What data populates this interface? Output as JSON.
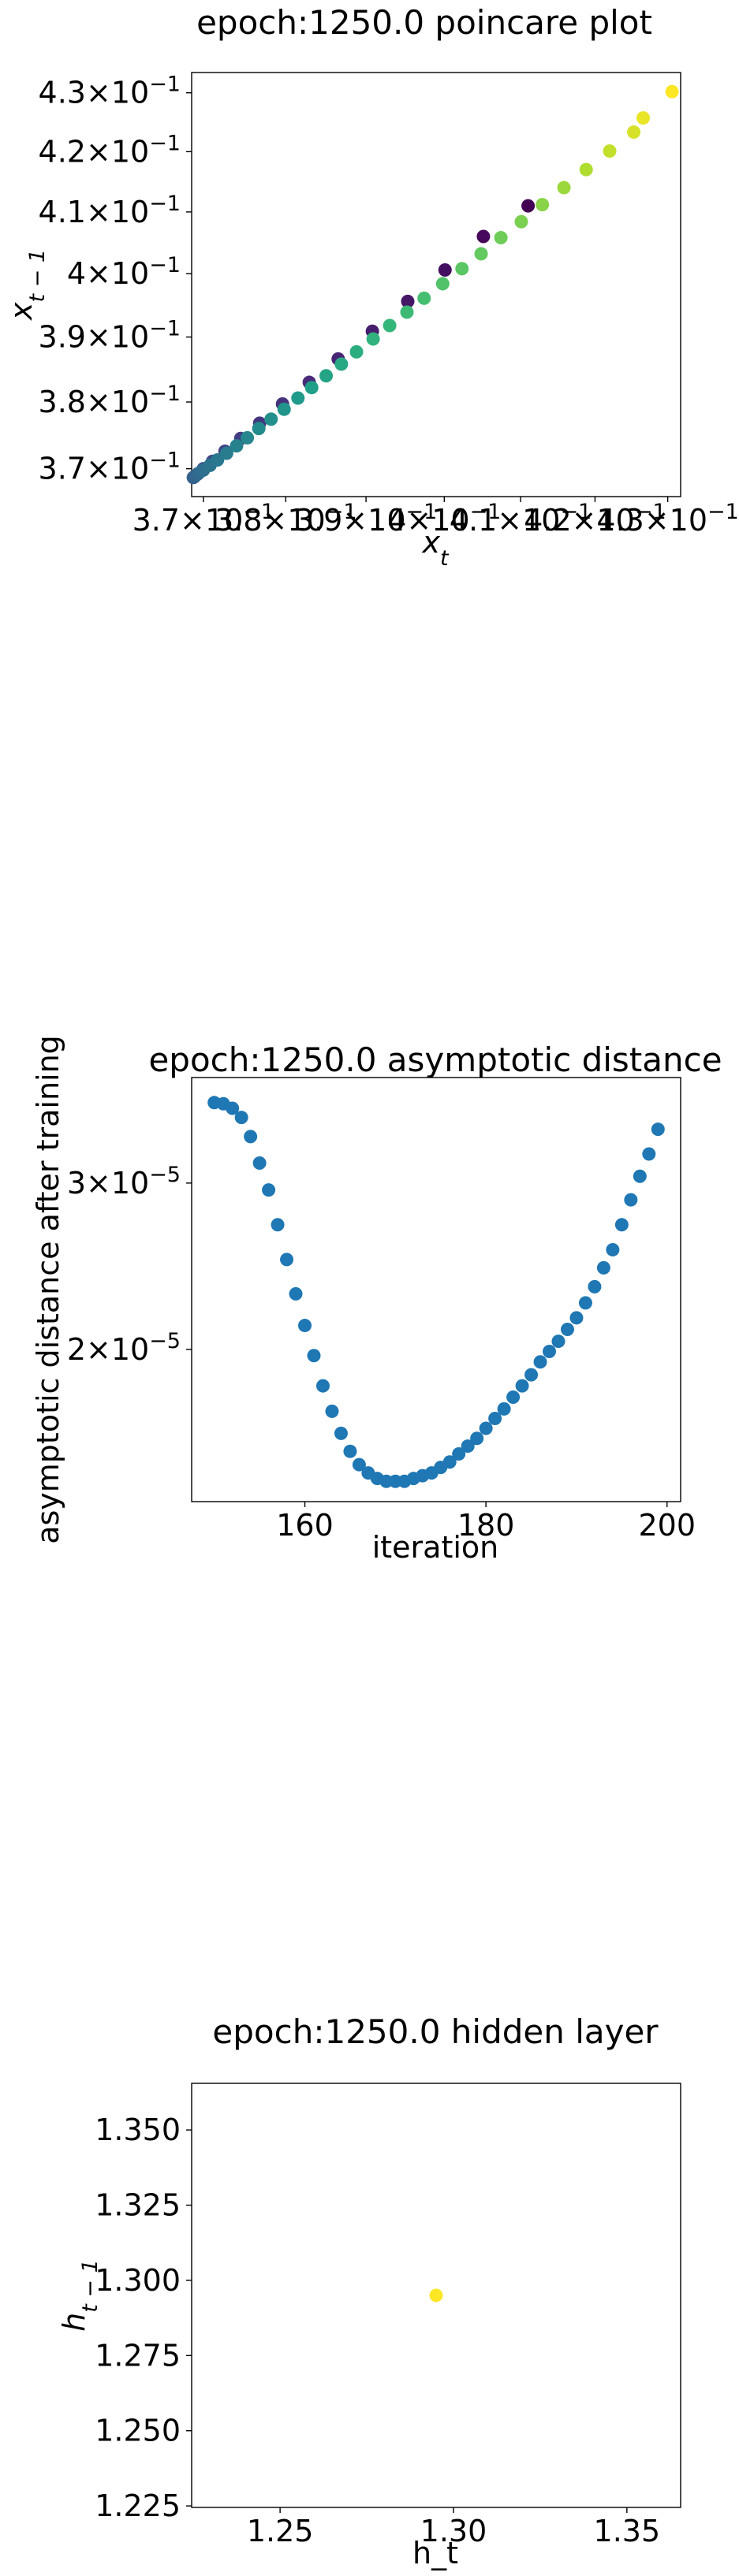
{
  "chart_data": [
    {
      "type": "scatter",
      "title": "epoch:1250.0 poincare plot",
      "xlabel": "x_t",
      "ylabel": "x_{t-1}",
      "scale": "log",
      "xlim": [
        0.3686,
        0.4318
      ],
      "ylim": [
        0.3659,
        0.4335
      ],
      "xticks": [
        {
          "v": 0.37,
          "mant": "3.7",
          "exp": "-1"
        },
        {
          "v": 0.38,
          "mant": "3.8",
          "exp": "-1"
        },
        {
          "v": 0.39,
          "mant": "3.9",
          "exp": "-1"
        },
        {
          "v": 0.4,
          "mant": "4",
          "exp": "-1"
        },
        {
          "v": 0.41,
          "mant": "4.1",
          "exp": "-1"
        },
        {
          "v": 0.42,
          "mant": "4.2",
          "exp": "-1"
        },
        {
          "v": 0.43,
          "mant": "4.3",
          "exp": "-1"
        }
      ],
      "yticks": [
        {
          "v": 0.37,
          "mant": "3.7",
          "exp": "-1"
        },
        {
          "v": 0.38,
          "mant": "3.8",
          "exp": "-1"
        },
        {
          "v": 0.39,
          "mant": "3.9",
          "exp": "-1"
        },
        {
          "v": 0.4,
          "mant": "4",
          "exp": "-1"
        },
        {
          "v": 0.41,
          "mant": "4.1",
          "exp": "-1"
        },
        {
          "v": 0.42,
          "mant": "4.2",
          "exp": "-1"
        },
        {
          "v": 0.43,
          "mant": "4.3",
          "exp": "-1"
        }
      ],
      "colormap": "viridis",
      "points": [
        {
          "x": 0.411,
          "y": 0.411,
          "c": 0.0
        },
        {
          "x": 0.4051,
          "y": 0.406,
          "c": 0.02
        },
        {
          "x": 0.4001,
          "y": 0.4006,
          "c": 0.04
        },
        {
          "x": 0.3953,
          "y": 0.3956,
          "c": 0.06
        },
        {
          "x": 0.3908,
          "y": 0.3909,
          "c": 0.08
        },
        {
          "x": 0.3865,
          "y": 0.3866,
          "c": 0.1
        },
        {
          "x": 0.3829,
          "y": 0.383,
          "c": 0.12
        },
        {
          "x": 0.3796,
          "y": 0.3797,
          "c": 0.14
        },
        {
          "x": 0.3768,
          "y": 0.3768,
          "c": 0.16
        },
        {
          "x": 0.3745,
          "y": 0.3745,
          "c": 0.18
        },
        {
          "x": 0.3726,
          "y": 0.3726,
          "c": 0.2
        },
        {
          "x": 0.3711,
          "y": 0.3711,
          "c": 0.22
        },
        {
          "x": 0.37,
          "y": 0.37,
          "c": 0.24
        },
        {
          "x": 0.3693,
          "y": 0.3692,
          "c": 0.26
        },
        {
          "x": 0.3689,
          "y": 0.3688,
          "c": 0.28
        },
        {
          "x": 0.3688,
          "y": 0.3687,
          "c": 0.3
        },
        {
          "x": 0.369,
          "y": 0.3689,
          "c": 0.32
        },
        {
          "x": 0.3694,
          "y": 0.3693,
          "c": 0.34
        },
        {
          "x": 0.37,
          "y": 0.3698,
          "c": 0.36
        },
        {
          "x": 0.3708,
          "y": 0.3705,
          "c": 0.38
        },
        {
          "x": 0.3717,
          "y": 0.3713,
          "c": 0.4
        },
        {
          "x": 0.3728,
          "y": 0.3723,
          "c": 0.42
        },
        {
          "x": 0.374,
          "y": 0.3734,
          "c": 0.44
        },
        {
          "x": 0.3753,
          "y": 0.3746,
          "c": 0.46
        },
        {
          "x": 0.3767,
          "y": 0.376,
          "c": 0.48
        },
        {
          "x": 0.3782,
          "y": 0.3774,
          "c": 0.5
        },
        {
          "x": 0.3798,
          "y": 0.3789,
          "c": 0.52
        },
        {
          "x": 0.3815,
          "y": 0.3806,
          "c": 0.54
        },
        {
          "x": 0.3832,
          "y": 0.3822,
          "c": 0.56
        },
        {
          "x": 0.385,
          "y": 0.384,
          "c": 0.58
        },
        {
          "x": 0.3869,
          "y": 0.3858,
          "c": 0.6
        },
        {
          "x": 0.3888,
          "y": 0.3877,
          "c": 0.62
        },
        {
          "x": 0.3909,
          "y": 0.3897,
          "c": 0.64
        },
        {
          "x": 0.393,
          "y": 0.3918,
          "c": 0.66
        },
        {
          "x": 0.3952,
          "y": 0.3939,
          "c": 0.68
        },
        {
          "x": 0.3974,
          "y": 0.3961,
          "c": 0.7
        },
        {
          "x": 0.3998,
          "y": 0.3984,
          "c": 0.72
        },
        {
          "x": 0.4023,
          "y": 0.4008,
          "c": 0.74
        },
        {
          "x": 0.4048,
          "y": 0.4032,
          "c": 0.76
        },
        {
          "x": 0.4074,
          "y": 0.4058,
          "c": 0.78
        },
        {
          "x": 0.4101,
          "y": 0.4084,
          "c": 0.8
        },
        {
          "x": 0.4129,
          "y": 0.4112,
          "c": 0.82
        },
        {
          "x": 0.4158,
          "y": 0.414,
          "c": 0.85
        },
        {
          "x": 0.4188,
          "y": 0.417,
          "c": 0.88
        },
        {
          "x": 0.422,
          "y": 0.4201,
          "c": 0.91
        },
        {
          "x": 0.4253,
          "y": 0.4233,
          "c": 0.94
        },
        {
          "x": 0.4266,
          "y": 0.4257,
          "c": 0.97
        },
        {
          "x": 0.4306,
          "y": 0.4302,
          "c": 1.0
        }
      ]
    },
    {
      "type": "scatter",
      "title": "epoch:1250.0 asymptotic distance",
      "xlabel": "iteration",
      "ylabel": "asymptotic distance after training",
      "xscale": "linear",
      "yscale": "log",
      "xlim": [
        147.5,
        201.5
      ],
      "ylim": [
        1.38e-05,
        3.88e-05
      ],
      "xticks": [
        {
          "v": 160,
          "label": "160"
        },
        {
          "v": 180,
          "label": "180"
        },
        {
          "v": 200,
          "label": "200"
        }
      ],
      "yticks": [
        {
          "v": 2e-05,
          "mant": "2",
          "exp": "-5"
        },
        {
          "v": 3e-05,
          "mant": "3",
          "exp": "-5"
        }
      ],
      "color": "#1f77b4",
      "x": [
        150,
        151,
        152,
        153,
        154,
        155,
        156,
        157,
        158,
        159,
        160,
        161,
        162,
        163,
        164,
        165,
        166,
        167,
        168,
        169,
        170,
        171,
        172,
        173,
        174,
        175,
        176,
        177,
        178,
        179,
        180,
        181,
        182,
        183,
        184,
        185,
        186,
        187,
        188,
        189,
        190,
        191,
        192,
        193,
        194,
        195,
        196,
        197,
        198,
        199
      ],
      "y": [
        3.65e-05,
        3.64e-05,
        3.6e-05,
        3.52e-05,
        3.36e-05,
        3.15e-05,
        2.95e-05,
        2.71e-05,
        2.49e-05,
        2.29e-05,
        2.12e-05,
        1.97e-05,
        1.83e-05,
        1.72e-05,
        1.63e-05,
        1.56e-05,
        1.51e-05,
        1.48e-05,
        1.46e-05,
        1.45e-05,
        1.45e-05,
        1.45e-05,
        1.46e-05,
        1.47e-05,
        1.48e-05,
        1.5e-05,
        1.52e-05,
        1.55e-05,
        1.58e-05,
        1.61e-05,
        1.65e-05,
        1.69e-05,
        1.73e-05,
        1.78e-05,
        1.83e-05,
        1.88e-05,
        1.94e-05,
        1.99e-05,
        2.04e-05,
        2.1e-05,
        2.16e-05,
        2.24e-05,
        2.33e-05,
        2.44e-05,
        2.55e-05,
        2.71e-05,
        2.88e-05,
        3.05e-05,
        3.22e-05,
        3.42e-05
      ]
    },
    {
      "type": "scatter",
      "title": "epoch:1250.0 hidden layer",
      "xlabel": "h_t",
      "ylabel": "h_{t-1}",
      "xlim": [
        1.2245,
        1.3655
      ],
      "ylim": [
        1.2245,
        1.3655
      ],
      "xticks": [
        {
          "v": 1.25,
          "label": "1.25"
        },
        {
          "v": 1.3,
          "label": "1.30"
        },
        {
          "v": 1.35,
          "label": "1.35"
        }
      ],
      "yticks": [
        {
          "v": 1.225,
          "label": "1.225"
        },
        {
          "v": 1.25,
          "label": "1.250"
        },
        {
          "v": 1.275,
          "label": "1.275"
        },
        {
          "v": 1.3,
          "label": "1.300"
        },
        {
          "v": 1.325,
          "label": "1.325"
        },
        {
          "v": 1.35,
          "label": "1.350"
        }
      ],
      "color": "#fde725",
      "points": [
        {
          "x": 1.295,
          "y": 1.295
        }
      ]
    }
  ]
}
